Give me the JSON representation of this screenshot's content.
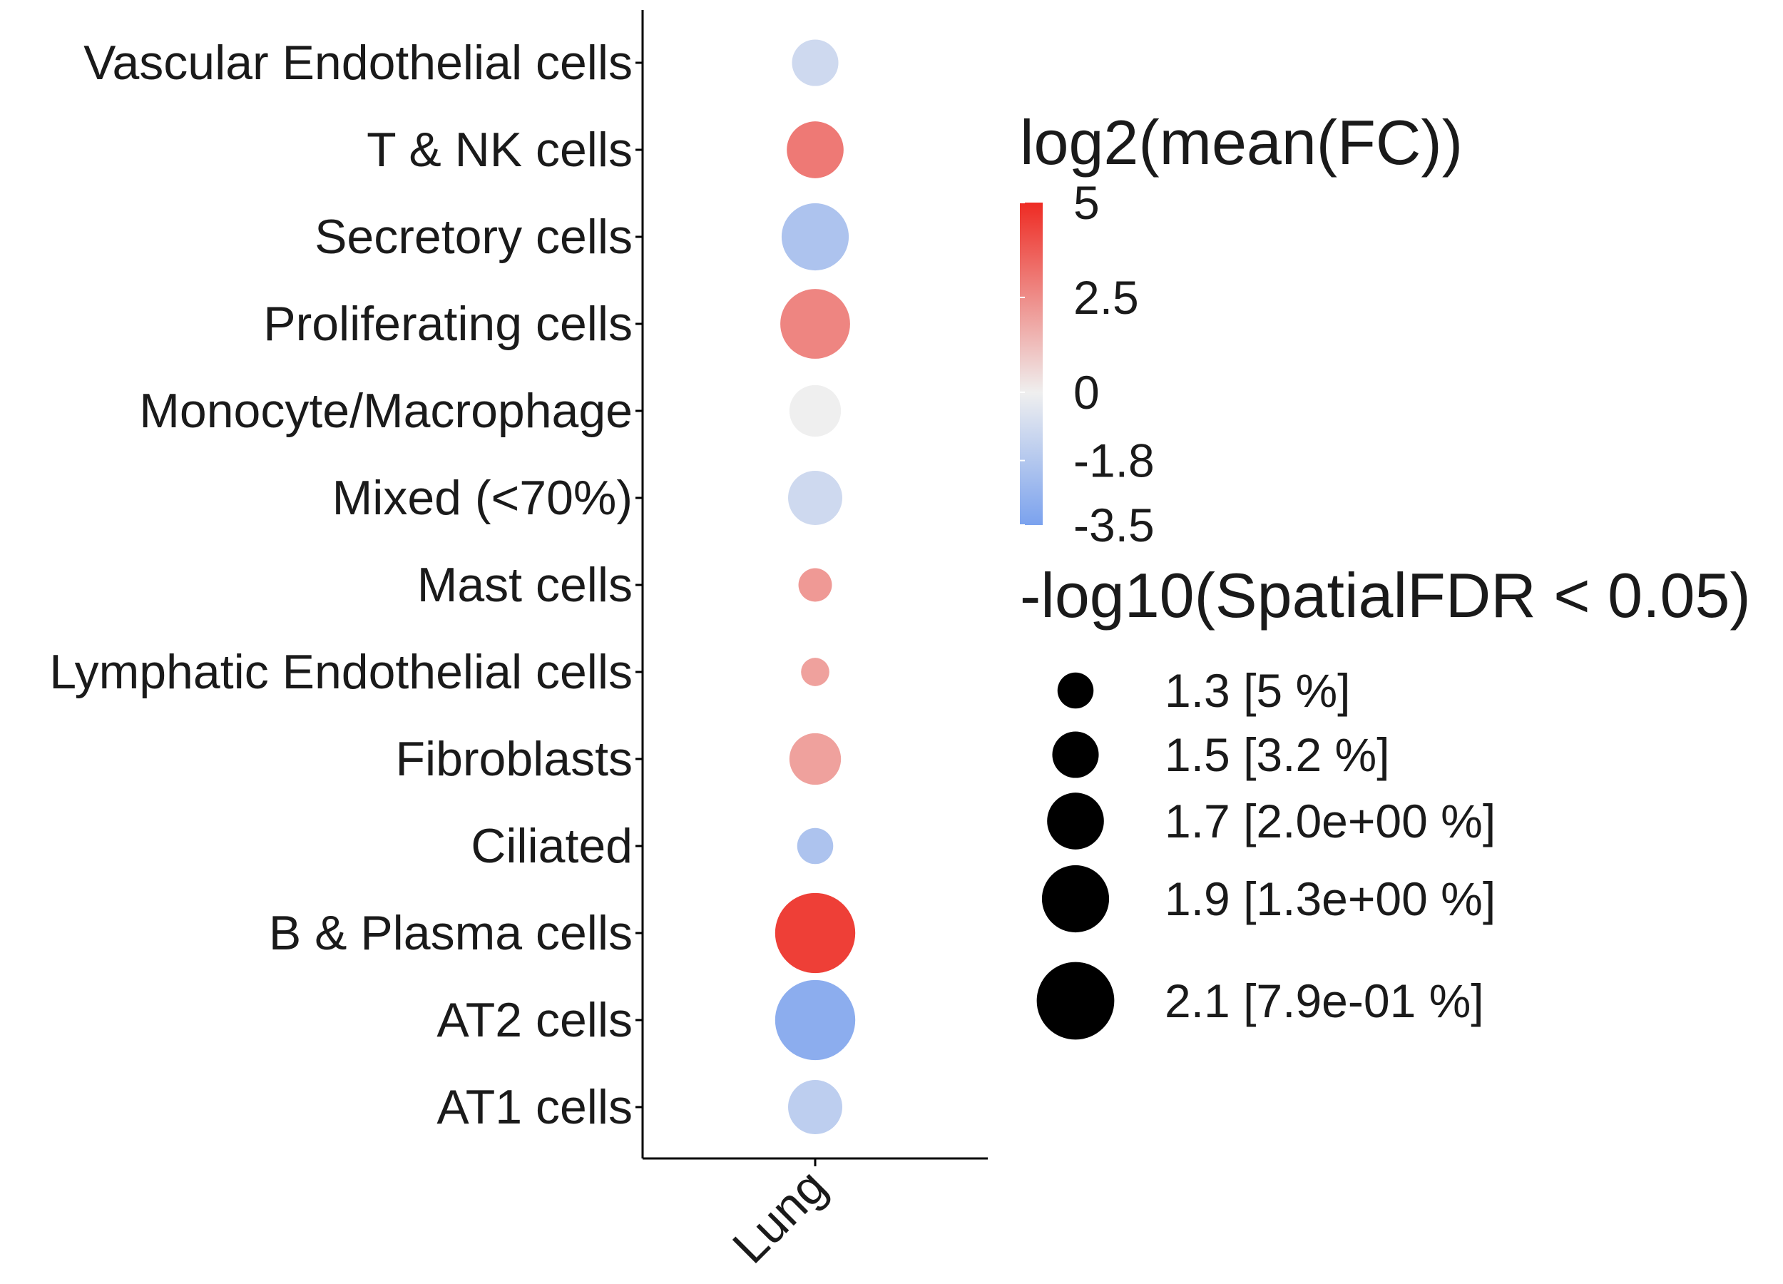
{
  "chart_data": {
    "type": "scatter",
    "x_categories": [
      "Lung"
    ],
    "y_categories": [
      "Vascular Endothelial cells",
      "T & NK cells",
      "Secretory cells",
      "Proliferating cells",
      "Monocyte/Macrophage",
      "Mixed (<70%)",
      "Mast cells",
      "Lymphatic Endothelial cells",
      "Fibroblasts",
      "Ciliated",
      "B & Plasma cells",
      "AT2 cells",
      "AT1 cells"
    ],
    "points": [
      {
        "x": "Lung",
        "y": "Vascular Endothelial cells",
        "log2_mean_fc": -1.0,
        "neg_log10_fdr": 1.5
      },
      {
        "x": "Lung",
        "y": "T & NK cells",
        "log2_mean_fc": 3.0,
        "neg_log10_fdr": 1.7
      },
      {
        "x": "Lung",
        "y": "Secretory cells",
        "log2_mean_fc": -2.0,
        "neg_log10_fdr": 1.9
      },
      {
        "x": "Lung",
        "y": "Proliferating cells",
        "log2_mean_fc": 2.7,
        "neg_log10_fdr": 1.95
      },
      {
        "x": "Lung",
        "y": "Monocyte/Macrophage",
        "log2_mean_fc": 0.0,
        "neg_log10_fdr": 1.6
      },
      {
        "x": "Lung",
        "y": "Mixed (<70%)",
        "log2_mean_fc": -1.0,
        "neg_log10_fdr": 1.65
      },
      {
        "x": "Lung",
        "y": "Mast cells",
        "log2_mean_fc": 2.2,
        "neg_log10_fdr": 1.25
      },
      {
        "x": "Lung",
        "y": "Lymphatic Endothelial cells",
        "log2_mean_fc": 2.0,
        "neg_log10_fdr": 1.15
      },
      {
        "x": "Lung",
        "y": "Fibroblasts",
        "log2_mean_fc": 2.0,
        "neg_log10_fdr": 1.6
      },
      {
        "x": "Lung",
        "y": "Ciliated",
        "log2_mean_fc": -2.0,
        "neg_log10_fdr": 1.3
      },
      {
        "x": "Lung",
        "y": "B & Plasma cells",
        "log2_mean_fc": 4.5,
        "neg_log10_fdr": 2.15
      },
      {
        "x": "Lung",
        "y": "AT2 cells",
        "log2_mean_fc": -3.0,
        "neg_log10_fdr": 2.15
      },
      {
        "x": "Lung",
        "y": "AT1 cells",
        "log2_mean_fc": -1.5,
        "neg_log10_fdr": 1.65
      }
    ],
    "color_legend": {
      "title": "log2(mean(FC))",
      "ticks": [
        {
          "value": 5,
          "label": "5"
        },
        {
          "value": 2.5,
          "label": "2.5"
        },
        {
          "value": 0,
          "label": "0"
        },
        {
          "value": -1.8,
          "label": "-1.8"
        },
        {
          "value": -3.5,
          "label": "-3.5"
        }
      ],
      "range": [
        -3.5,
        5
      ],
      "low_color": "#7ba2ee",
      "mid_color": "#efefef",
      "high_color": "#ee2b23"
    },
    "size_legend": {
      "title": "-log10(SpatialFDR < 0.05)",
      "entries": [
        {
          "value": 1.3,
          "label": "1.3 [5 %]"
        },
        {
          "value": 1.5,
          "label": "1.5 [3.2 %]"
        },
        {
          "value": 1.7,
          "label": "1.7 [2.0e+00 %]"
        },
        {
          "value": 1.9,
          "label": "1.9 [1.3e+00 %]"
        },
        {
          "value": 2.1,
          "label": "2.1 [7.9e-01 %]"
        }
      ]
    },
    "grid": false,
    "legend_position": "right"
  }
}
